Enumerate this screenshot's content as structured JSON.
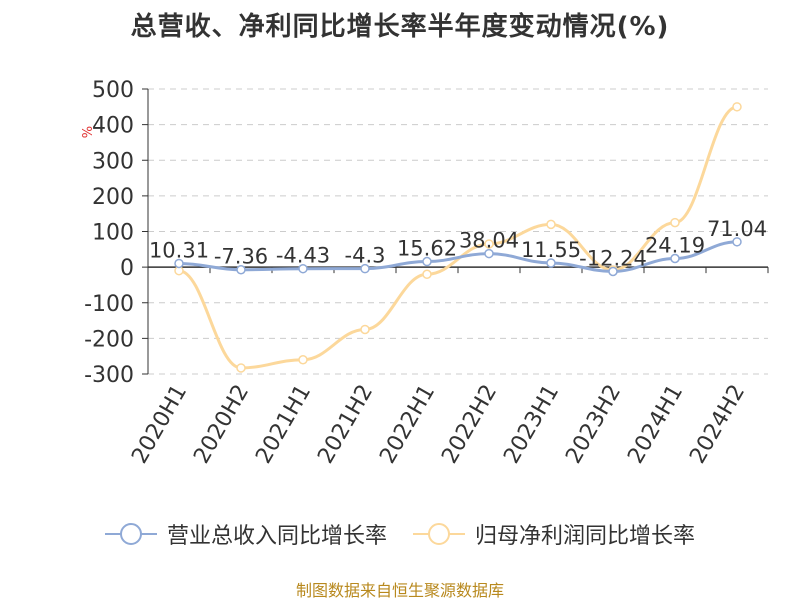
{
  "title": "总营收、净利同比增长率半年度变动情况(%)",
  "source": "制图数据来自恒生聚源数据库",
  "colors": {
    "revenue": "#8fa9d6",
    "profit": "#fcd89b",
    "grid": "#cccccc",
    "axis": "#333333",
    "unit": "#e03030",
    "source": "#b8891e"
  },
  "legend": [
    {
      "label": "营业总收入同比增长率",
      "series": 0
    },
    {
      "label": "归母净利润同比增长率",
      "series": 1
    }
  ],
  "chart_data": {
    "type": "line",
    "title": "总营收、净利同比增长率半年度变动情况(%)",
    "unit_label": "%",
    "categories": [
      "2020H1",
      "2020H2",
      "2021H1",
      "2021H2",
      "2022H1",
      "2022H2",
      "2023H1",
      "2023H2",
      "2024H1",
      "2024H2"
    ],
    "ylim": [
      -300,
      500
    ],
    "yticks": [
      500,
      400,
      300,
      200,
      100,
      0,
      -100,
      -200,
      -300
    ],
    "grid": true,
    "legend_position": "bottom",
    "series": [
      {
        "name": "营业总收入同比增长率",
        "values": [
          10.31,
          -7.36,
          -4.43,
          -4.3,
          15.62,
          38.04,
          11.55,
          -12.24,
          24.19,
          71.04
        ],
        "labels": [
          "10.31",
          "-7.36",
          "-4.43",
          "-4.3",
          "15.62",
          "38.04",
          "11.55",
          "-12.24",
          "24.19",
          "71.04"
        ]
      },
      {
        "name": "归母净利润同比增长率",
        "values": [
          -10,
          -283,
          -260,
          -175,
          -20,
          65,
          120,
          -8,
          125,
          450
        ]
      }
    ]
  }
}
